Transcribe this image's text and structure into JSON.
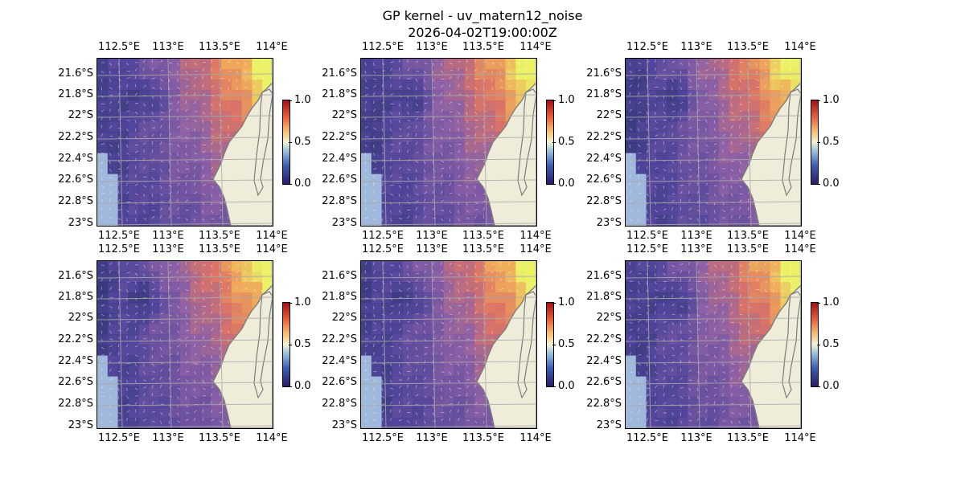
{
  "figure": {
    "title": "GP kernel - uv_matern12_noise",
    "subtitle": "2026-04-02T19:00:00Z"
  },
  "axes": {
    "lon_ticks": [
      "112.5°E",
      "113°E",
      "113.5°E",
      "114°E"
    ],
    "lat_ticks": [
      "21.6°S",
      "21.8°S",
      "22°S",
      "22.2°S",
      "22.4°S",
      "22.6°S",
      "22.8°S",
      "23°S"
    ]
  },
  "colorbar": {
    "ticks": [
      "0.0",
      "0.5",
      "1.0"
    ],
    "range": [
      0.0,
      1.0
    ]
  },
  "panels": [
    {
      "id": "panel-1",
      "row": 1,
      "col": 1
    },
    {
      "id": "panel-2",
      "row": 1,
      "col": 2
    },
    {
      "id": "panel-3",
      "row": 1,
      "col": 3
    },
    {
      "id": "panel-4",
      "row": 2,
      "col": 1
    },
    {
      "id": "panel-5",
      "row": 2,
      "col": 2
    },
    {
      "id": "panel-6",
      "row": 2,
      "col": 3
    }
  ],
  "colors": {
    "land": "#efedda",
    "ocean": "#9fb8dc",
    "coastline": "#7d7d7d",
    "gridlines": "#a9a9a9",
    "field_low": "#1a2a5e",
    "field_mid": "#6a4fa0",
    "field_high": "#f2ef5c"
  }
}
